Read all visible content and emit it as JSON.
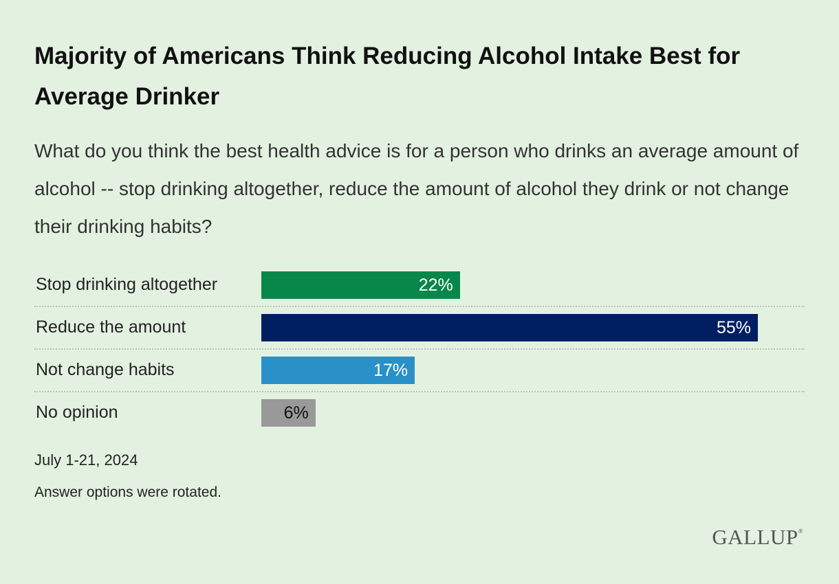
{
  "header": {
    "title": "Majority of Americans Think Reducing Alcohol Intake Best for Average Drinker",
    "subtitle": "What do you think the best health advice is for a person who drinks an average amount of alcohol -- stop drinking altogether, reduce the amount of alcohol they drink or not change their drinking habits?"
  },
  "chart_data": {
    "type": "bar",
    "orientation": "horizontal",
    "title": "Majority of Americans Think Reducing Alcohol Intake Best for Average Drinker",
    "xlabel": "",
    "ylabel": "",
    "xlim": [
      0,
      55
    ],
    "categories": [
      "Stop drinking altogether",
      "Reduce the amount",
      "Not change habits",
      "No opinion"
    ],
    "values": [
      22,
      55,
      17,
      6
    ],
    "value_labels": [
      "22%",
      "55%",
      "17%",
      "6%"
    ],
    "colors": [
      "#07884a",
      "#001f63",
      "#2990c8",
      "#999999"
    ],
    "label_colors": [
      "#ffffff",
      "#ffffff",
      "#ffffff",
      "#111111"
    ],
    "grid": false
  },
  "footer": {
    "date": "July 1-21, 2024",
    "note": "Answer options were rotated.",
    "logo_text": "GALLUP",
    "logo_mark": "®"
  }
}
